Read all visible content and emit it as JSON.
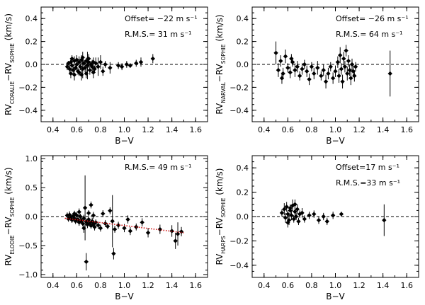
{
  "chart_data": [
    {
      "type": "scatter",
      "id": "coralie",
      "ylabel_main": "RV",
      "ylabel_sub1": "CORALIE",
      "ylabel_mid": "−RV",
      "ylabel_sub2": "SOPHIE",
      "ylabel_unit": "(km/s)",
      "xlabel": "B−V",
      "xlim": [
        0.3,
        1.7
      ],
      "ylim": [
        -0.5,
        0.5
      ],
      "xticks": [
        0.4,
        0.6,
        0.8,
        1.0,
        1.2,
        1.4,
        1.6
      ],
      "xtick_labels": [
        "0.4",
        "0.6",
        "0.8",
        "1.0",
        "1.2",
        "1.4",
        "1.6"
      ],
      "yticks": [
        -0.4,
        -0.2,
        0.0,
        0.2,
        0.4
      ],
      "ytick_labels": [
        "−0.4",
        "−0.2",
        "0.0",
        "0.2",
        "0.4"
      ],
      "offset_line": 0.0,
      "annotations": [
        "Offset= −22 m s⁻¹",
        "R.M.S.= 31 m s⁻¹"
      ],
      "points": [
        [
          0.52,
          -0.02,
          0.03
        ],
        [
          0.53,
          0.01,
          0.02
        ],
        [
          0.54,
          -0.04,
          0.04
        ],
        [
          0.55,
          0.02,
          0.03
        ],
        [
          0.56,
          -0.01,
          0.05
        ],
        [
          0.57,
          -0.05,
          0.03
        ],
        [
          0.58,
          0.03,
          0.04
        ],
        [
          0.59,
          -0.03,
          0.02
        ],
        [
          0.6,
          0.0,
          0.06
        ],
        [
          0.61,
          -0.06,
          0.03
        ],
        [
          0.62,
          0.02,
          0.05
        ],
        [
          0.63,
          -0.02,
          0.03
        ],
        [
          0.64,
          0.04,
          0.04
        ],
        [
          0.65,
          -0.04,
          0.08
        ],
        [
          0.66,
          0.01,
          0.03
        ],
        [
          0.67,
          -0.03,
          0.04
        ],
        [
          0.68,
          0.03,
          0.03
        ],
        [
          0.69,
          -0.01,
          0.12
        ],
        [
          0.7,
          0.02,
          0.05
        ],
        [
          0.71,
          -0.05,
          0.04
        ],
        [
          0.72,
          0.0,
          0.03
        ],
        [
          0.73,
          -0.02,
          0.06
        ],
        [
          0.74,
          0.02,
          0.04
        ],
        [
          0.75,
          -0.04,
          0.03
        ],
        [
          0.76,
          0.01,
          0.05
        ],
        [
          0.78,
          -0.02,
          0.08
        ],
        [
          0.8,
          0.02,
          0.06
        ],
        [
          0.82,
          -0.06,
          0.04
        ],
        [
          0.84,
          0.0,
          0.03
        ],
        [
          0.88,
          -0.03,
          0.05
        ],
        [
          0.55,
          -0.08,
          0.04
        ],
        [
          0.58,
          -0.09,
          0.05
        ],
        [
          0.62,
          -0.07,
          0.03
        ],
        [
          0.65,
          0.06,
          0.05
        ],
        [
          0.68,
          -0.08,
          0.04
        ],
        [
          0.56,
          0.05,
          0.03
        ],
        [
          0.6,
          0.04,
          0.04
        ],
        [
          0.64,
          -0.09,
          0.05
        ],
        [
          0.7,
          0.05,
          0.04
        ],
        [
          0.74,
          -0.07,
          0.05
        ],
        [
          0.95,
          -0.01,
          0.03
        ],
        [
          0.98,
          -0.02,
          0.03
        ],
        [
          1.02,
          0.0,
          0.03
        ],
        [
          1.05,
          -0.01,
          0.02
        ],
        [
          1.1,
          0.01,
          0.03
        ],
        [
          1.14,
          0.02,
          0.04
        ],
        [
          1.24,
          0.05,
          0.04
        ]
      ]
    },
    {
      "type": "scatter",
      "id": "narval",
      "ylabel_main": "RV",
      "ylabel_sub1": "NARVAL",
      "ylabel_mid": "−RV",
      "ylabel_sub2": "SOPHIE",
      "ylabel_unit": "(km/s)",
      "xlabel": "B−V",
      "xlim": [
        0.3,
        1.7
      ],
      "ylim": [
        -0.5,
        0.5
      ],
      "xticks": [
        0.4,
        0.6,
        0.8,
        1.0,
        1.2,
        1.4,
        1.6
      ],
      "xtick_labels": [
        "0.4",
        "0.6",
        "0.8",
        "1.0",
        "1.2",
        "1.4",
        "1.6"
      ],
      "yticks": [
        -0.4,
        -0.2,
        0.0,
        0.2,
        0.4
      ],
      "ytick_labels": [
        "−0.4",
        "−0.2",
        "0.0",
        "0.2",
        "0.4"
      ],
      "offset_line": 0.0,
      "annotations": [
        "Offset= −26 m s⁻¹",
        "R.M.S.= 64 m s⁻¹"
      ],
      "points": [
        [
          0.5,
          0.1,
          0.1
        ],
        [
          0.52,
          -0.05,
          0.06
        ],
        [
          0.54,
          0.03,
          0.05
        ],
        [
          0.56,
          -0.08,
          0.05
        ],
        [
          0.58,
          0.07,
          0.06
        ],
        [
          0.6,
          -0.03,
          0.04
        ],
        [
          0.62,
          -0.07,
          0.05
        ],
        [
          0.64,
          0.02,
          0.04
        ],
        [
          0.66,
          -0.05,
          0.06
        ],
        [
          0.68,
          -0.02,
          0.05
        ],
        [
          0.7,
          -0.1,
          0.04
        ],
        [
          0.72,
          -0.04,
          0.05
        ],
        [
          0.74,
          0.0,
          0.04
        ],
        [
          0.76,
          -0.06,
          0.05
        ],
        [
          0.8,
          -0.02,
          0.04
        ],
        [
          0.82,
          -0.08,
          0.05
        ],
        [
          0.85,
          -0.03,
          0.06
        ],
        [
          0.88,
          -0.1,
          0.04
        ],
        [
          0.9,
          -0.05,
          0.05
        ],
        [
          0.92,
          -0.15,
          0.06
        ],
        [
          0.94,
          -0.08,
          0.05
        ],
        [
          0.96,
          -0.02,
          0.04
        ],
        [
          0.98,
          -0.12,
          0.05
        ],
        [
          1.0,
          -0.06,
          0.05
        ],
        [
          1.02,
          0.02,
          0.05
        ],
        [
          1.03,
          -0.1,
          0.06
        ],
        [
          1.04,
          0.08,
          0.07
        ],
        [
          1.05,
          -0.04,
          0.05
        ],
        [
          1.06,
          -0.15,
          0.06
        ],
        [
          1.07,
          0.05,
          0.06
        ],
        [
          1.08,
          -0.02,
          0.05
        ],
        [
          1.09,
          0.12,
          0.05
        ],
        [
          1.1,
          -0.08,
          0.06
        ],
        [
          1.11,
          0.03,
          0.05
        ],
        [
          1.12,
          -0.05,
          0.05
        ],
        [
          1.13,
          -0.12,
          0.06
        ],
        [
          1.14,
          0.0,
          0.05
        ],
        [
          1.15,
          -0.06,
          0.05
        ],
        [
          1.16,
          -0.1,
          0.05
        ],
        [
          1.17,
          -0.02,
          0.04
        ],
        [
          0.55,
          -0.12,
          0.05
        ],
        [
          0.63,
          0.05,
          0.04
        ],
        [
          0.78,
          -0.13,
          0.05
        ],
        [
          1.46,
          -0.08,
          0.2
        ]
      ]
    },
    {
      "type": "scatter",
      "id": "elodie",
      "ylabel_main": "RV",
      "ylabel_sub1": "ELODIE",
      "ylabel_mid": "−RV",
      "ylabel_sub2": "SOPHIE",
      "ylabel_unit": "(km/s)",
      "xlabel": "B−V",
      "xlim": [
        0.3,
        1.7
      ],
      "ylim": [
        -1.05,
        1.05
      ],
      "xticks": [
        0.4,
        0.6,
        0.8,
        1.0,
        1.2,
        1.4,
        1.6
      ],
      "xtick_labels": [
        "0.4",
        "0.6",
        "0.8",
        "1.0",
        "1.2",
        "1.4",
        "1.6"
      ],
      "yticks": [
        -1.0,
        -0.5,
        0.0,
        0.5,
        1.0
      ],
      "ytick_labels": [
        "−1.0",
        "−0.5",
        "0.0",
        "0.5",
        "1.0"
      ],
      "offset_line": 0.0,
      "trend": [
        [
          0.5,
          -0.03
        ],
        [
          1.5,
          -0.28
        ]
      ],
      "annotations": [
        "R.M.S.= 49 m s⁻¹"
      ],
      "points": [
        [
          0.52,
          0.02,
          0.05
        ],
        [
          0.53,
          -0.04,
          0.05
        ],
        [
          0.54,
          0.03,
          0.06
        ],
        [
          0.55,
          -0.01,
          0.05
        ],
        [
          0.56,
          -0.06,
          0.05
        ],
        [
          0.57,
          0.01,
          0.05
        ],
        [
          0.58,
          -0.03,
          0.06
        ],
        [
          0.59,
          -0.08,
          0.05
        ],
        [
          0.6,
          0.02,
          0.06
        ],
        [
          0.61,
          -0.05,
          0.05
        ],
        [
          0.62,
          -0.1,
          0.06
        ],
        [
          0.63,
          0.0,
          0.05
        ],
        [
          0.64,
          -0.07,
          0.06
        ],
        [
          0.65,
          -0.12,
          0.05
        ],
        [
          0.66,
          -0.03,
          0.06
        ],
        [
          0.67,
          0.15,
          0.56
        ],
        [
          0.68,
          -0.09,
          0.05
        ],
        [
          0.69,
          -0.14,
          0.06
        ],
        [
          0.7,
          -0.05,
          0.05
        ],
        [
          0.71,
          -0.11,
          0.06
        ],
        [
          0.72,
          -0.16,
          0.05
        ],
        [
          0.73,
          -0.08,
          0.06
        ],
        [
          0.74,
          -0.13,
          0.05
        ],
        [
          0.75,
          -0.18,
          0.06
        ],
        [
          0.76,
          -0.1,
          0.05
        ],
        [
          0.78,
          -0.15,
          0.06
        ],
        [
          0.8,
          -0.2,
          0.06
        ],
        [
          0.82,
          0.05,
          0.06
        ],
        [
          0.84,
          -0.12,
          0.06
        ],
        [
          0.86,
          -0.17,
          0.05
        ],
        [
          0.88,
          0.1,
          0.06
        ],
        [
          0.9,
          -0.08,
          0.45
        ],
        [
          0.92,
          -0.22,
          0.06
        ],
        [
          0.95,
          -0.15,
          0.06
        ],
        [
          1.0,
          -0.2,
          0.07
        ],
        [
          1.05,
          -0.25,
          0.07
        ],
        [
          1.1,
          -0.18,
          0.06
        ],
        [
          1.15,
          -0.1,
          0.07
        ],
        [
          1.2,
          -0.28,
          0.08
        ],
        [
          1.3,
          -0.22,
          0.08
        ],
        [
          1.4,
          -0.25,
          0.1
        ],
        [
          1.43,
          -0.42,
          0.14
        ],
        [
          1.45,
          -0.3,
          0.2
        ],
        [
          1.48,
          -0.26,
          0.08
        ],
        [
          0.58,
          0.05,
          0.05
        ],
        [
          0.62,
          0.08,
          0.06
        ],
        [
          0.66,
          -0.2,
          0.08
        ],
        [
          0.7,
          0.06,
          0.05
        ],
        [
          0.74,
          0.02,
          0.06
        ],
        [
          0.68,
          -0.78,
          0.15
        ],
        [
          0.91,
          -0.64,
          0.1
        ],
        [
          0.72,
          0.2,
          0.06
        ],
        [
          1.03,
          -0.05,
          0.07
        ]
      ]
    },
    {
      "type": "scatter",
      "id": "harps",
      "ylabel_main": "RV",
      "ylabel_sub1": "HARPS",
      "ylabel_mid": "−RV",
      "ylabel_sub2": "SOPHIE",
      "ylabel_unit": "(km/s)",
      "xlabel": "B−V",
      "xlim": [
        0.3,
        1.7
      ],
      "ylim": [
        -0.5,
        0.5
      ],
      "xticks": [
        0.4,
        0.6,
        0.8,
        1.0,
        1.2,
        1.4,
        1.6
      ],
      "xtick_labels": [
        "0.4",
        "0.6",
        "0.8",
        "1.0",
        "1.2",
        "1.4",
        "1.6"
      ],
      "yticks": [
        -0.4,
        -0.2,
        0.0,
        0.2,
        0.4
      ],
      "ytick_labels": [
        "−0.4",
        "−0.2",
        "0.0",
        "0.2",
        "0.4"
      ],
      "offset_line": 0.0,
      "annotations": [
        "Offset=17 m s⁻¹",
        "R.M.S.=33 m s⁻¹"
      ],
      "points": [
        [
          0.55,
          0.03,
          0.03
        ],
        [
          0.57,
          0.06,
          0.05
        ],
        [
          0.58,
          -0.01,
          0.04
        ],
        [
          0.59,
          0.08,
          0.04
        ],
        [
          0.6,
          0.02,
          0.03
        ],
        [
          0.61,
          -0.03,
          0.04
        ],
        [
          0.62,
          0.05,
          0.03
        ],
        [
          0.63,
          0.01,
          0.04
        ],
        [
          0.64,
          0.09,
          0.05
        ],
        [
          0.65,
          -0.02,
          0.03
        ],
        [
          0.66,
          0.04,
          0.04
        ],
        [
          0.67,
          0.0,
          0.03
        ],
        [
          0.68,
          0.06,
          0.04
        ],
        [
          0.69,
          -0.04,
          0.03
        ],
        [
          0.7,
          0.02,
          0.03
        ],
        [
          0.72,
          0.03,
          0.04
        ],
        [
          0.74,
          -0.02,
          0.03
        ],
        [
          0.78,
          0.01,
          0.03
        ],
        [
          0.82,
          0.02,
          0.03
        ],
        [
          0.86,
          -0.03,
          0.03
        ],
        [
          0.9,
          0.0,
          0.03
        ],
        [
          0.93,
          -0.04,
          0.03
        ],
        [
          0.98,
          0.01,
          0.03
        ],
        [
          1.05,
          0.02,
          0.02
        ],
        [
          0.6,
          -0.05,
          0.04
        ],
        [
          0.62,
          0.07,
          0.03
        ],
        [
          0.66,
          0.1,
          0.04
        ],
        [
          1.41,
          -0.03,
          0.13
        ]
      ]
    }
  ]
}
